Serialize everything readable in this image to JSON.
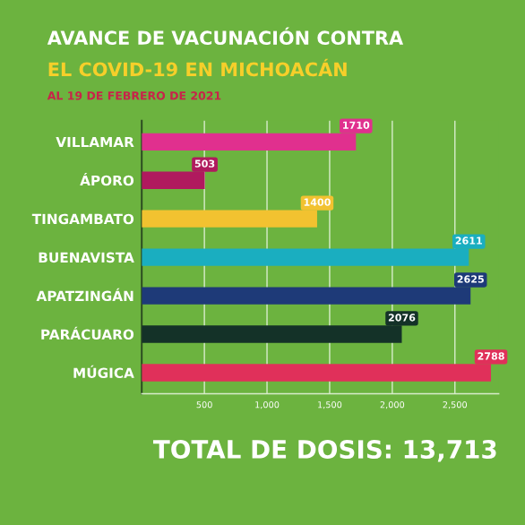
{
  "chart_data": {
    "type": "bar",
    "orientation": "horizontal",
    "title": "AVANCE DE VACUNACIÓN CONTRA\nEL COVID-19 EN MICHOACÁN",
    "subtitle": "AL 19 DE FEBRERO DE 2021",
    "categories": [
      "VILLAMAR",
      "ÁPORO",
      "TINGAMBATO",
      "BUENAVISTA",
      "APATZINGÁN",
      "PARÁCUARO",
      "MÚGICA"
    ],
    "values": [
      1710,
      503,
      1400,
      2611,
      2625,
      2076,
      2788
    ],
    "colors": [
      "#e0308e",
      "#b01a5e",
      "#f2c230",
      "#1aaec0",
      "#1e3a78",
      "#143228",
      "#e0305a"
    ],
    "xlim": [
      0,
      2850
    ],
    "xticks": [
      {
        "value": 500,
        "label": "500"
      },
      {
        "value": 1000,
        "label": "1,000"
      },
      {
        "value": 1500,
        "label": "1,500"
      },
      {
        "value": 2000,
        "label": "2,000"
      },
      {
        "value": 2500,
        "label": "2,500"
      }
    ],
    "grid": "x",
    "data_labels": true,
    "annotations": [
      "TOTAL DE DOSIS: 13,713"
    ]
  }
}
